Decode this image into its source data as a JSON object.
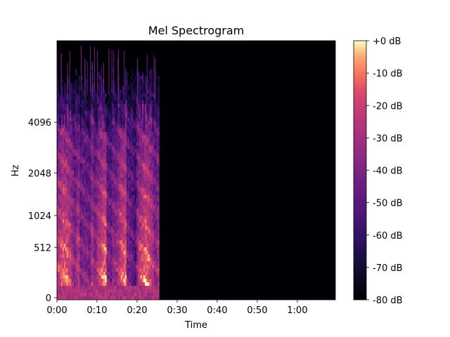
{
  "chart_data": {
    "type": "heatmap",
    "title": "Mel Spectrogram",
    "xlabel": "Time",
    "ylabel": "Hz",
    "x_ticks": [
      "0:00",
      "0:10",
      "0:20",
      "0:30",
      "0:40",
      "0:50",
      "1:00"
    ],
    "x_tick_seconds": [
      0,
      10,
      20,
      30,
      40,
      50,
      60
    ],
    "xlim_seconds": [
      0,
      69.5
    ],
    "y_ticks": [
      "0",
      "512",
      "1024",
      "2048",
      "4096"
    ],
    "y_tick_hz": [
      0,
      512,
      1024,
      2048,
      4096
    ],
    "ylim_hz": [
      0,
      11025
    ],
    "y_scale": "mel",
    "signal_end_seconds": 25.5,
    "colorbar": {
      "ticks": [
        "+0 dB",
        "-10 dB",
        "-20 dB",
        "-30 dB",
        "-40 dB",
        "-50 dB",
        "-60 dB",
        "-70 dB",
        "-80 dB"
      ],
      "tick_db": [
        0,
        -10,
        -20,
        -30,
        -40,
        -50,
        -60,
        -70,
        -80
      ],
      "range_db": [
        -80,
        0
      ],
      "colormap": "magma"
    },
    "grid": false
  }
}
